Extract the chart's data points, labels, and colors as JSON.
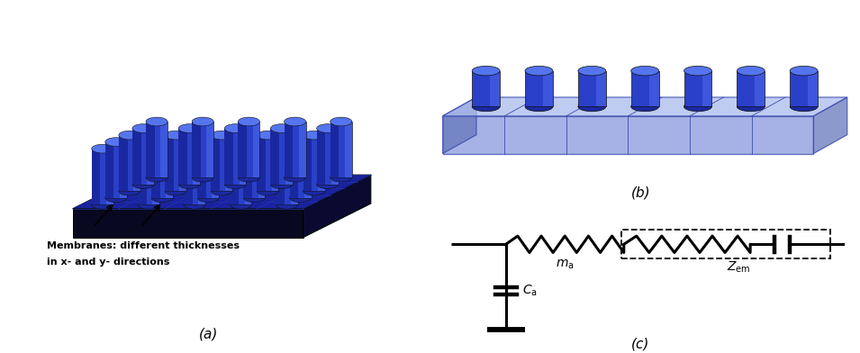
{
  "fig_width": 9.55,
  "fig_height": 3.92,
  "bg_color": "#ffffff",
  "label_a": "(a)",
  "label_b": "(b)",
  "label_c": "(c)",
  "text_membrane_line1": "Membranes: different thicknesses",
  "text_membrane_line2": "in x- and y- directions",
  "cyl_body_color": "#2a40c8",
  "cyl_highlight": "#4a65e8",
  "cyl_top_color": "#5575ee",
  "cyl_shadow": "#1a28a0",
  "base_front_color": "#080820",
  "base_top_color": "#1a22a0",
  "base_right_color": "#0a0a30",
  "base_left_color": "#0a0a30",
  "b_front_color": "#6677cc",
  "b_top_color": "#8899dd",
  "b_right_color": "#5566bb",
  "b_left_color": "#5566bb",
  "b_partition_color": "#4455aa",
  "grid_color": "#2233aa"
}
